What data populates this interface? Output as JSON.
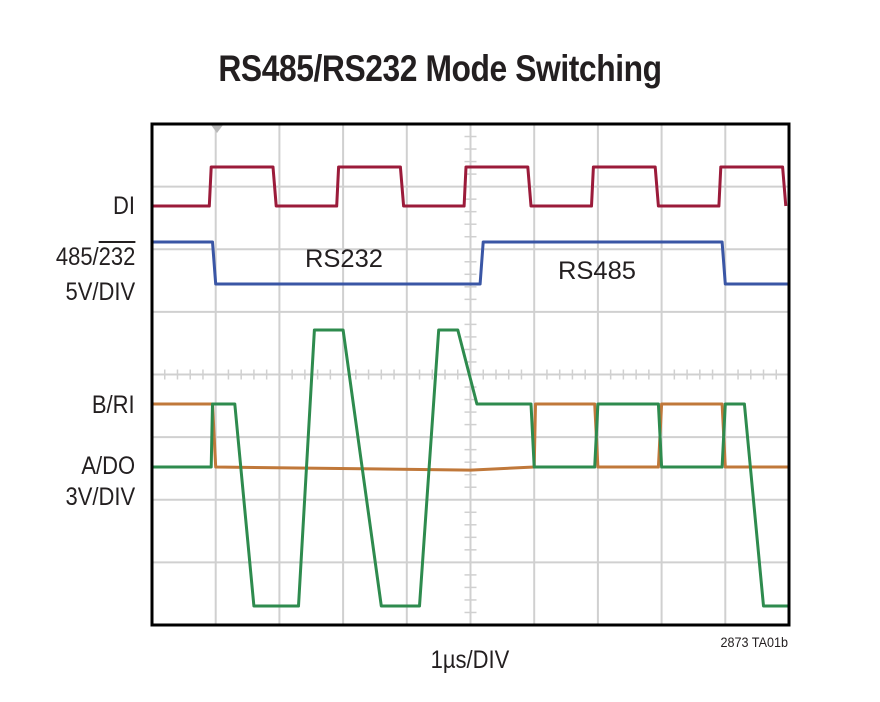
{
  "title": "RS485/RS232 Mode Switching",
  "x_axis_label": "1µs/DIV",
  "figure_id": "2873 TA01b",
  "channel_labels": {
    "di": "DI",
    "mode_prefix": "485/",
    "mode_overline": "232",
    "mode_scale": "5V/DIV",
    "b_ri": "B/RI",
    "a_do": "A/DO",
    "bus_scale": "3V/DIV"
  },
  "annotations": {
    "rs232": "RS232",
    "rs485": "RS485"
  },
  "colors": {
    "di": "#9b1b3a",
    "mode": "#3a56a5",
    "b_ri": "#c0783a",
    "a_do": "#2e8b4e",
    "grid": "#d0d0d0",
    "frame": "#000000"
  },
  "chart_data": {
    "type": "line",
    "title": "RS485/RS232 Mode Switching",
    "xlabel": "1µs/DIV",
    "grid": {
      "x_divisions": 10,
      "y_divisions": 8,
      "grid_on": true
    },
    "x_unit": "µs",
    "xlim": [
      0,
      10
    ],
    "trigger_marker_x": 1.0,
    "series": [
      {
        "name": "DI",
        "scale": "5V/DIV",
        "color": "#9b1b3a",
        "points": [
          [
            0,
            0
          ],
          [
            0.9,
            0
          ],
          [
            0.93,
            1
          ],
          [
            1.9,
            1
          ],
          [
            1.95,
            0
          ],
          [
            2.9,
            0
          ],
          [
            2.93,
            1
          ],
          [
            3.9,
            1
          ],
          [
            3.95,
            0
          ],
          [
            4.9,
            0
          ],
          [
            4.93,
            1
          ],
          [
            5.9,
            1
          ],
          [
            5.95,
            0
          ],
          [
            6.9,
            0
          ],
          [
            6.93,
            1
          ],
          [
            7.9,
            1
          ],
          [
            7.95,
            0
          ],
          [
            8.9,
            0
          ],
          [
            8.93,
            1
          ],
          [
            9.9,
            1
          ],
          [
            9.95,
            0
          ]
        ]
      },
      {
        "name": "485/232 (mode select)",
        "scale": "5V/DIV",
        "color": "#3a56a5",
        "points": [
          [
            0,
            1
          ],
          [
            0.95,
            1
          ],
          [
            1.0,
            0
          ],
          [
            5.15,
            0
          ],
          [
            5.2,
            1
          ],
          [
            8.95,
            1
          ],
          [
            9.0,
            0
          ],
          [
            10,
            0
          ]
        ],
        "annotations": [
          {
            "x": 3.0,
            "text": "RS232"
          },
          {
            "x": 7.0,
            "text": "RS485"
          }
        ]
      },
      {
        "name": "B/RI",
        "scale": "3V/DIV",
        "color": "#c0783a",
        "points": [
          [
            0,
            1
          ],
          [
            0.95,
            1
          ],
          [
            1.0,
            0
          ],
          [
            5.0,
            -0.05
          ],
          [
            6.0,
            0
          ],
          [
            6.0,
            0
          ],
          [
            6.02,
            1
          ],
          [
            6.95,
            1
          ],
          [
            7.0,
            0
          ],
          [
            7.95,
            0
          ],
          [
            8.0,
            1
          ],
          [
            8.95,
            1
          ],
          [
            9.0,
            0
          ],
          [
            10,
            0
          ]
        ]
      },
      {
        "name": "A/DO",
        "scale": "3V/DIV",
        "color": "#2e8b4e",
        "points": [
          [
            0,
            0
          ],
          [
            0.93,
            0
          ],
          [
            0.95,
            1
          ],
          [
            1.3,
            1
          ],
          [
            1.6,
            -3.2
          ],
          [
            2.3,
            -3.2
          ],
          [
            2.55,
            2.2
          ],
          [
            3.0,
            2.2
          ],
          [
            3.6,
            -3.2
          ],
          [
            4.2,
            -3.2
          ],
          [
            4.5,
            2.2
          ],
          [
            4.8,
            2.2
          ],
          [
            5.1,
            1
          ],
          [
            5.95,
            1
          ],
          [
            6.0,
            0
          ],
          [
            6.95,
            0
          ],
          [
            7.0,
            1
          ],
          [
            7.95,
            1
          ],
          [
            8.0,
            0
          ],
          [
            8.95,
            0
          ],
          [
            9.0,
            1
          ],
          [
            9.3,
            1
          ],
          [
            9.6,
            -3.2
          ],
          [
            10,
            -3.2
          ]
        ]
      }
    ]
  }
}
